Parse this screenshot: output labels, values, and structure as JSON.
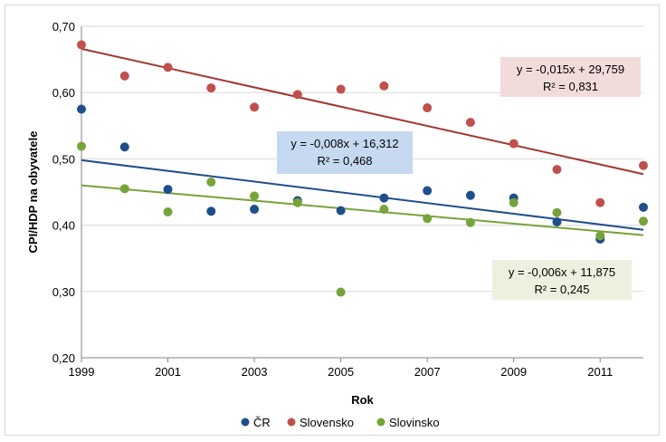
{
  "chart_data": {
    "type": "scatter",
    "title": "",
    "xlabel": "Rok",
    "ylabel": "CPI/HDP na obyvatele",
    "xlim": [
      1999,
      2012
    ],
    "ylim": [
      0.2,
      0.7
    ],
    "x_ticks": [
      "1999",
      "2001",
      "2003",
      "2005",
      "2007",
      "2009",
      "2011"
    ],
    "y_ticks": [
      "0,20",
      "0,30",
      "0,40",
      "0,50",
      "0,60",
      "0,70"
    ],
    "grid": "horizontal",
    "legend_position": "bottom",
    "x": [
      1999,
      2000,
      2001,
      2002,
      2003,
      2004,
      2005,
      2006,
      2007,
      2008,
      2009,
      2010,
      2011,
      2012
    ],
    "series": [
      {
        "name": "ČR",
        "color": "#1f4e8c",
        "values": [
          0.575,
          0.518,
          0.454,
          0.421,
          0.424,
          0.437,
          0.422,
          0.441,
          0.452,
          0.445,
          0.441,
          0.405,
          0.379,
          0.427
        ],
        "trendline": {
          "slope": -0.008,
          "intercept": 16.312,
          "start": 0.498,
          "end": 0.393,
          "equation": "y = -0,008x + 16,312",
          "r2": "R² = 0,468"
        }
      },
      {
        "name": "Slovensko",
        "color": "#c0504d",
        "values": [
          0.672,
          0.625,
          0.638,
          0.607,
          0.578,
          0.597,
          0.605,
          0.61,
          0.577,
          0.555,
          0.523,
          0.484,
          0.434,
          0.49
        ],
        "trendline": {
          "slope": -0.015,
          "intercept": 29.759,
          "start": 0.666,
          "end": 0.477,
          "equation": "y = -0,015x + 29,759",
          "r2": "R² = 0,831"
        }
      },
      {
        "name": "Slovinsko",
        "color": "#77a33a",
        "values": [
          0.519,
          0.455,
          0.42,
          0.465,
          0.444,
          0.434,
          0.299,
          0.424,
          0.41,
          0.404,
          0.434,
          0.419,
          0.384,
          0.406
        ],
        "trendline": {
          "slope": -0.006,
          "intercept": 11.875,
          "start": 0.46,
          "end": 0.385,
          "equation": "y = -0,006x + 11,875",
          "r2": "R² = 0,245"
        }
      }
    ]
  },
  "colors": {
    "cr_eq_bg": "#c6d9f1",
    "sk_eq_bg": "#f2dcdb",
    "si_eq_bg": "#ebf1de",
    "cr_line": "#1f4e8c",
    "sk_line": "#a33532",
    "si_line": "#77a33a",
    "grid": "#d9d9d9",
    "axis": "#868686"
  }
}
